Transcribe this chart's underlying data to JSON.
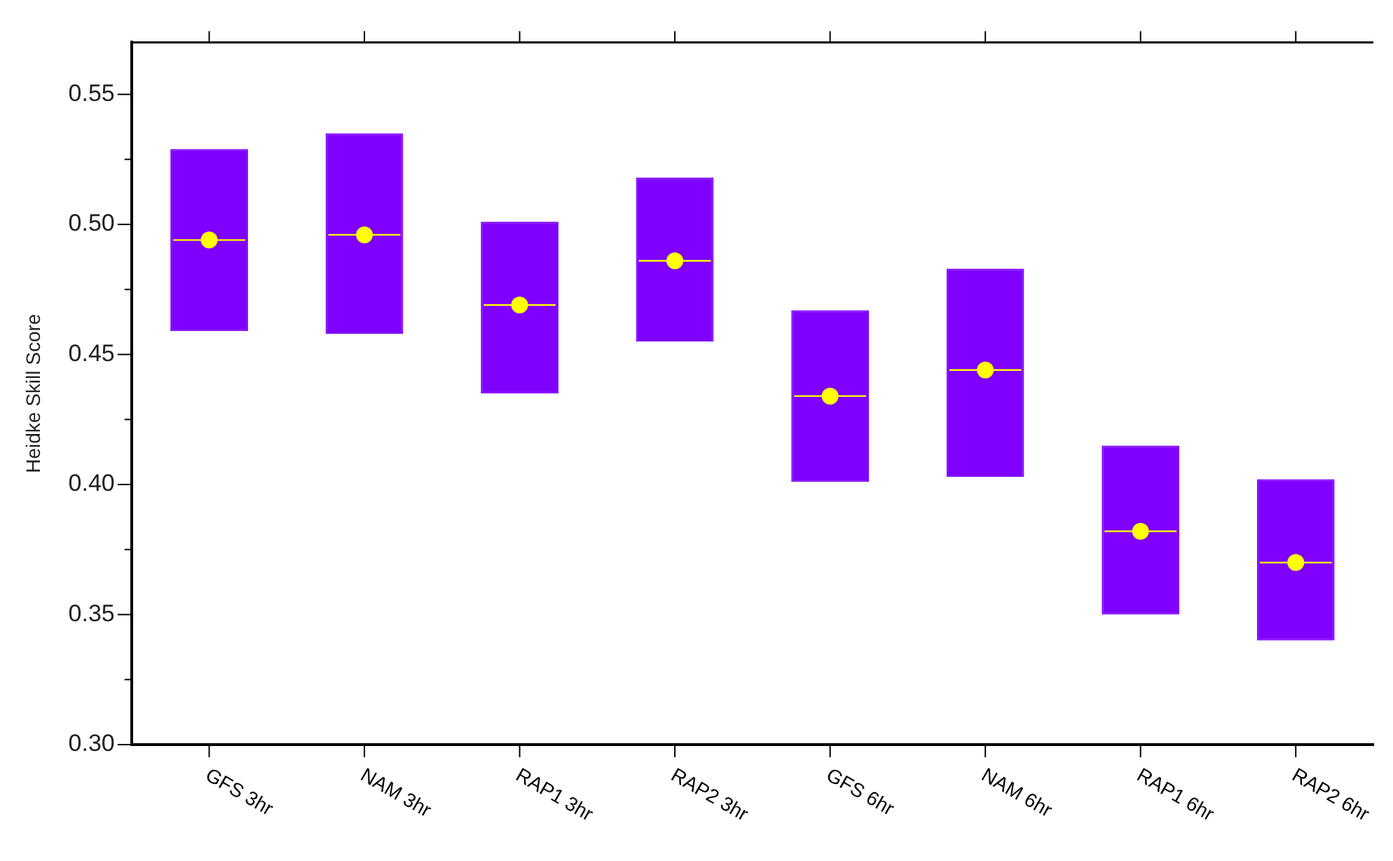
{
  "chart_data": {
    "type": "box",
    "ylabel": "Heidke Skill Score",
    "categories": [
      "GFS 3hr",
      "NAM 3hr",
      "RAP1 3hr",
      "RAP2 3hr",
      "GFS 6hr",
      "NAM 6hr",
      "RAP1 6hr",
      "RAP2 6hr"
    ],
    "series": [
      {
        "color": "#7f00ff",
        "boxes": [
          {
            "low": 0.459,
            "q1": 0.459,
            "median": 0.494,
            "q3": 0.529,
            "high": 0.529,
            "mean": 0.494
          },
          {
            "low": 0.458,
            "q1": 0.458,
            "median": 0.496,
            "q3": 0.535,
            "high": 0.535,
            "mean": 0.496
          },
          {
            "low": 0.435,
            "q1": 0.435,
            "median": 0.469,
            "q3": 0.501,
            "high": 0.501,
            "mean": 0.469
          },
          {
            "low": 0.455,
            "q1": 0.455,
            "median": 0.486,
            "q3": 0.518,
            "high": 0.518,
            "mean": 0.486
          },
          {
            "low": 0.401,
            "q1": 0.401,
            "median": 0.434,
            "q3": 0.467,
            "high": 0.467,
            "mean": 0.434
          },
          {
            "low": 0.403,
            "q1": 0.403,
            "median": 0.444,
            "q3": 0.483,
            "high": 0.483,
            "mean": 0.444
          },
          {
            "low": 0.35,
            "q1": 0.35,
            "median": 0.382,
            "q3": 0.415,
            "high": 0.415,
            "mean": 0.382
          },
          {
            "low": 0.34,
            "q1": 0.34,
            "median": 0.37,
            "q3": 0.402,
            "high": 0.402,
            "mean": 0.37
          }
        ]
      }
    ],
    "marker": "circle",
    "ylim": [
      0.3,
      0.57
    ],
    "yticks": [
      {
        "value": 0.3,
        "label": "0.30"
      },
      {
        "value": 0.325,
        "label": null
      },
      {
        "value": 0.35,
        "label": "0.35"
      },
      {
        "value": 0.375,
        "label": null
      },
      {
        "value": 0.4,
        "label": "0.40"
      },
      {
        "value": 0.425,
        "label": null
      },
      {
        "value": 0.45,
        "label": "0.45"
      },
      {
        "value": 0.475,
        "label": null
      },
      {
        "value": 0.5,
        "label": "0.50"
      },
      {
        "value": 0.525,
        "label": null
      },
      {
        "value": 0.55,
        "label": "0.55"
      }
    ],
    "grid": false,
    "legend": false
  }
}
